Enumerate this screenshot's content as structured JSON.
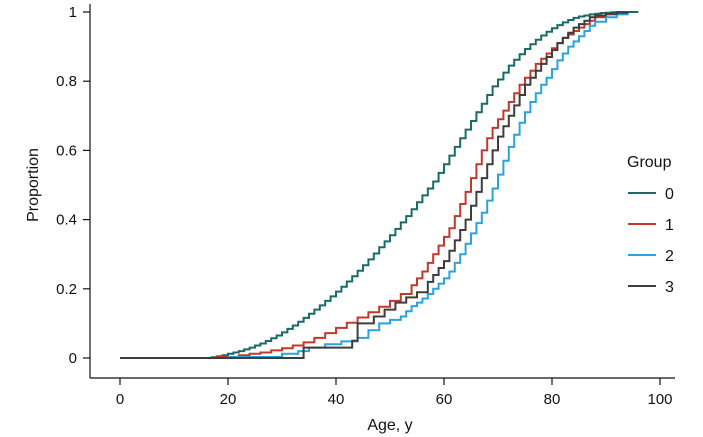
{
  "chart_data": {
    "type": "line",
    "step": true,
    "xlabel": "Age, y",
    "ylabel": "Proportion",
    "xlim": [
      0,
      100
    ],
    "ylim": [
      0,
      1
    ],
    "xticks": [
      0,
      20,
      40,
      60,
      80,
      100
    ],
    "yticks": [
      0,
      0.2,
      0.4,
      0.6,
      0.8,
      1
    ],
    "ytick_labels": [
      "0",
      "0.2",
      "0.4",
      "0.6",
      "0.8",
      "1"
    ],
    "grid": false,
    "legend": {
      "title": "Group",
      "placement": "right"
    },
    "series": [
      {
        "name": "0",
        "color": "#1a6b66",
        "x": [
          0,
          17,
          18,
          19,
          20,
          21,
          22,
          23,
          24,
          25,
          26,
          27,
          28,
          29,
          30,
          31,
          32,
          33,
          34,
          35,
          36,
          37,
          38,
          39,
          40,
          41,
          42,
          43,
          44,
          45,
          46,
          47,
          48,
          49,
          50,
          51,
          52,
          53,
          54,
          55,
          56,
          57,
          58,
          59,
          60,
          61,
          62,
          63,
          64,
          65,
          66,
          67,
          68,
          69,
          70,
          71,
          72,
          73,
          74,
          75,
          76,
          77,
          78,
          79,
          80,
          81,
          82,
          83,
          84,
          85,
          86,
          87,
          88,
          89,
          90,
          91,
          92,
          93,
          94,
          96
        ],
        "y": [
          0,
          0.002,
          0.005,
          0.008,
          0.012,
          0.016,
          0.02,
          0.025,
          0.03,
          0.036,
          0.042,
          0.049,
          0.057,
          0.065,
          0.074,
          0.084,
          0.094,
          0.105,
          0.116,
          0.128,
          0.14,
          0.152,
          0.165,
          0.178,
          0.192,
          0.206,
          0.221,
          0.236,
          0.252,
          0.268,
          0.285,
          0.302,
          0.32,
          0.337,
          0.355,
          0.373,
          0.392,
          0.41,
          0.43,
          0.45,
          0.47,
          0.49,
          0.51,
          0.535,
          0.56,
          0.585,
          0.61,
          0.635,
          0.66,
          0.685,
          0.71,
          0.735,
          0.76,
          0.785,
          0.805,
          0.825,
          0.845,
          0.862,
          0.878,
          0.893,
          0.907,
          0.92,
          0.932,
          0.943,
          0.953,
          0.962,
          0.97,
          0.977,
          0.983,
          0.987,
          0.99,
          0.993,
          0.995,
          0.997,
          0.998,
          0.999,
          1.0,
          1.0,
          1.0,
          1.0
        ]
      },
      {
        "name": "1",
        "color": "#c0392b",
        "x": [
          0,
          18,
          22,
          24,
          26,
          28,
          30,
          32,
          34,
          36,
          38,
          40,
          42,
          44,
          46,
          48,
          50,
          52,
          54,
          55,
          56,
          57,
          58,
          59,
          60,
          61,
          62,
          63,
          64,
          65,
          66,
          67,
          68,
          69,
          70,
          71,
          72,
          73,
          74,
          75,
          76,
          77,
          78,
          79,
          80,
          81,
          82,
          83,
          84,
          85,
          86,
          87,
          88,
          90,
          92,
          94
        ],
        "y": [
          0,
          0.003,
          0.008,
          0.012,
          0.016,
          0.022,
          0.028,
          0.036,
          0.045,
          0.058,
          0.072,
          0.087,
          0.102,
          0.117,
          0.132,
          0.148,
          0.165,
          0.185,
          0.21,
          0.23,
          0.25,
          0.275,
          0.3,
          0.325,
          0.35,
          0.375,
          0.41,
          0.445,
          0.48,
          0.52,
          0.56,
          0.6,
          0.635,
          0.665,
          0.69,
          0.715,
          0.74,
          0.765,
          0.79,
          0.81,
          0.83,
          0.85,
          0.865,
          0.88,
          0.895,
          0.91,
          0.925,
          0.935,
          0.945,
          0.955,
          0.965,
          0.975,
          0.985,
          0.993,
          0.997,
          1.0
        ]
      },
      {
        "name": "2",
        "color": "#29a3dd",
        "x": [
          0,
          20,
          30,
          33,
          35,
          38,
          41,
          44,
          46,
          48,
          50,
          52,
          53,
          54,
          55,
          56,
          57,
          58,
          59,
          60,
          61,
          62,
          63,
          64,
          65,
          66,
          67,
          68,
          69,
          70,
          71,
          72,
          73,
          74,
          75,
          76,
          77,
          78,
          79,
          80,
          81,
          82,
          83,
          84,
          85,
          86,
          87,
          88,
          90,
          92,
          94
        ],
        "y": [
          0,
          0.003,
          0.012,
          0.02,
          0.03,
          0.04,
          0.048,
          0.058,
          0.08,
          0.1,
          0.11,
          0.12,
          0.135,
          0.15,
          0.16,
          0.172,
          0.185,
          0.2,
          0.215,
          0.23,
          0.25,
          0.275,
          0.3,
          0.33,
          0.36,
          0.39,
          0.42,
          0.455,
          0.49,
          0.53,
          0.57,
          0.61,
          0.645,
          0.68,
          0.71,
          0.74,
          0.765,
          0.79,
          0.81,
          0.835,
          0.86,
          0.88,
          0.9,
          0.915,
          0.93,
          0.945,
          0.96,
          0.972,
          0.985,
          0.993,
          1.0
        ]
      },
      {
        "name": "3",
        "color": "#3d3d3d",
        "x": [
          0,
          34,
          43,
          44,
          47,
          49,
          51,
          53,
          55,
          57,
          58,
          59,
          60,
          61,
          62,
          63,
          64,
          65,
          66,
          67,
          68,
          69,
          70,
          71,
          72,
          73,
          74,
          75,
          76,
          77,
          78,
          79,
          80,
          81,
          82,
          83,
          84,
          85,
          86,
          87,
          88,
          90,
          92,
          94
        ],
        "y": [
          0,
          0.03,
          0.05,
          0.1,
          0.12,
          0.14,
          0.16,
          0.175,
          0.19,
          0.22,
          0.24,
          0.26,
          0.28,
          0.31,
          0.34,
          0.37,
          0.4,
          0.44,
          0.48,
          0.52,
          0.56,
          0.6,
          0.64,
          0.67,
          0.7,
          0.73,
          0.76,
          0.79,
          0.81,
          0.83,
          0.85,
          0.87,
          0.89,
          0.91,
          0.925,
          0.94,
          0.955,
          0.965,
          0.975,
          0.985,
          0.99,
          0.995,
          0.998,
          1.0
        ]
      }
    ]
  }
}
